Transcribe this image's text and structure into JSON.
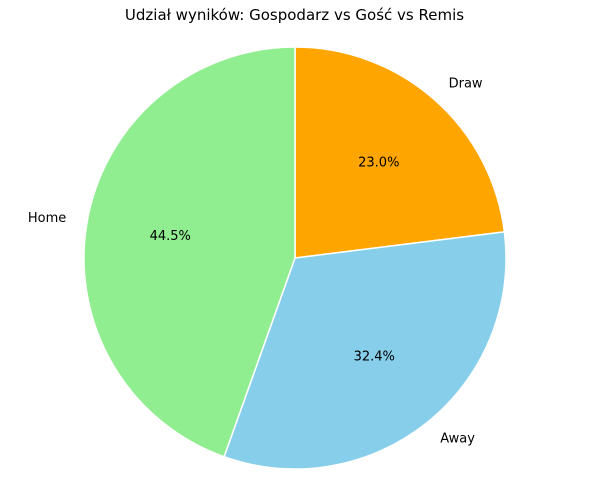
{
  "chart_data": {
    "type": "pie",
    "title": "Udział wyników: Gospodarz vs Gość vs Remis",
    "categories": [
      "Draw",
      "Away",
      "Home"
    ],
    "values": [
      23.0,
      32.4,
      44.5
    ],
    "value_labels": [
      "23.0%",
      "32.4%",
      "44.5%"
    ],
    "colors": [
      "#FFA500",
      "#87CEEB",
      "#90EE90"
    ],
    "start_angle_deg": 90,
    "direction": "clockwise",
    "aspect": "equal",
    "legend": "none"
  }
}
